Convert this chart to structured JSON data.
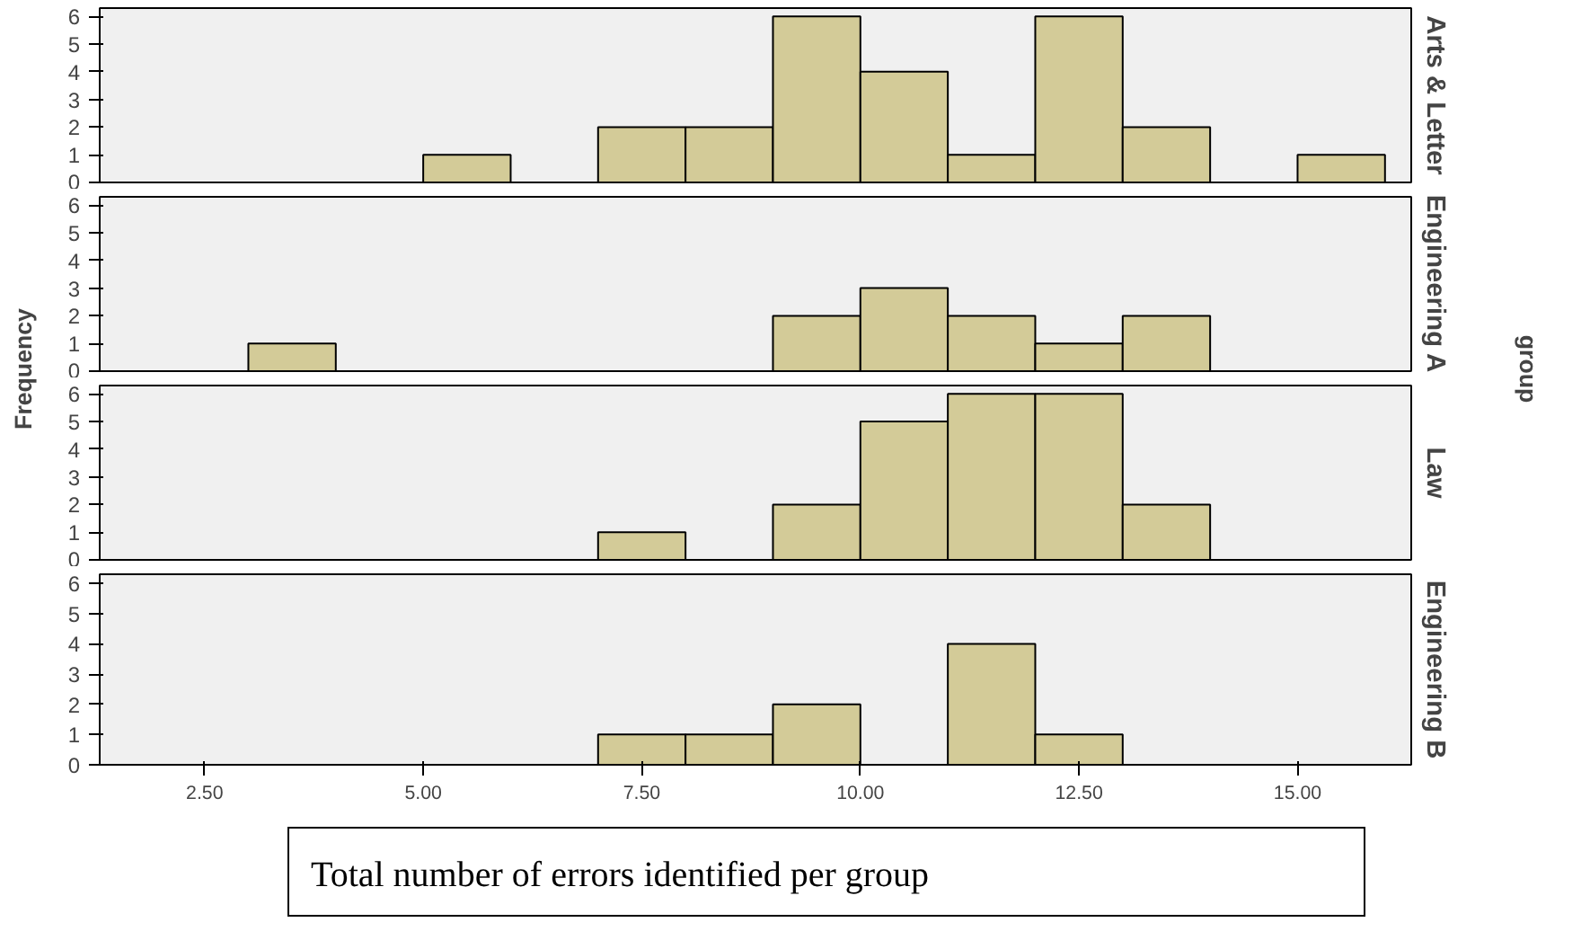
{
  "chart_data": [
    {
      "type": "histogram",
      "title": "Arts & Letter",
      "ylabel": "Frequency",
      "y2label": "group",
      "bins": [
        3,
        4,
        5,
        6,
        7,
        8,
        9,
        10,
        11,
        12,
        13,
        14,
        15,
        16
      ],
      "values": [
        0,
        0,
        1,
        0,
        2,
        2,
        6,
        4,
        1,
        6,
        2,
        0,
        1
      ],
      "color": "#d3cb98",
      "xlim": [
        1.3,
        16.3
      ],
      "ylim": [
        0,
        6.3
      ],
      "yticks": [
        0,
        1,
        2,
        3,
        4,
        5,
        6
      ],
      "tick_labels": "y",
      "grid": false
    },
    {
      "type": "histogram",
      "title": "Engineering A",
      "bins": [
        3,
        4,
        5,
        6,
        7,
        8,
        9,
        10,
        11,
        12,
        13,
        14,
        15,
        16
      ],
      "values": [
        1,
        0,
        0,
        0,
        0,
        0,
        2,
        3,
        2,
        1,
        2,
        0,
        0
      ],
      "color": "#d3cb98",
      "xlim": [
        1.3,
        16.3
      ],
      "ylim": [
        0,
        6.3
      ],
      "yticks": [
        0,
        1,
        2,
        3,
        4,
        5,
        6
      ],
      "tick_labels": "y",
      "grid": false
    },
    {
      "type": "histogram",
      "title": "Law",
      "bins": [
        3,
        4,
        5,
        6,
        7,
        8,
        9,
        10,
        11,
        12,
        13,
        14,
        15,
        16
      ],
      "values": [
        0,
        0,
        0,
        0,
        1,
        0,
        2,
        5,
        6,
        6,
        2,
        0,
        0
      ],
      "color": "#d3cb98",
      "xlim": [
        1.3,
        16.3
      ],
      "ylim": [
        0,
        6.3
      ],
      "yticks": [
        0,
        1,
        2,
        3,
        4,
        5,
        6
      ],
      "tick_labels": "y",
      "grid": false
    },
    {
      "type": "histogram",
      "title": "Engineering B",
      "xlabel": "Total number of errors identified per group",
      "bins": [
        3,
        4,
        5,
        6,
        7,
        8,
        9,
        10,
        11,
        12,
        13,
        14,
        15,
        16
      ],
      "values": [
        0,
        0,
        0,
        0,
        1,
        1,
        2,
        0,
        4,
        1,
        0,
        0,
        0
      ],
      "color": "#d3cb98",
      "xlim": [
        1.3,
        16.3
      ],
      "ylim": [
        0,
        6.3
      ],
      "yticks": [
        0,
        1,
        2,
        3,
        4,
        5,
        6
      ],
      "xticks": [
        {
          "value": 2.5,
          "label": "2.50"
        },
        {
          "value": 5,
          "label": "5.00"
        },
        {
          "value": 7.5,
          "label": "7.50"
        },
        {
          "value": 10,
          "label": "10.00"
        },
        {
          "value": 12.5,
          "label": "12.50"
        },
        {
          "value": 15,
          "label": "15.00"
        }
      ],
      "grid": false
    }
  ]
}
